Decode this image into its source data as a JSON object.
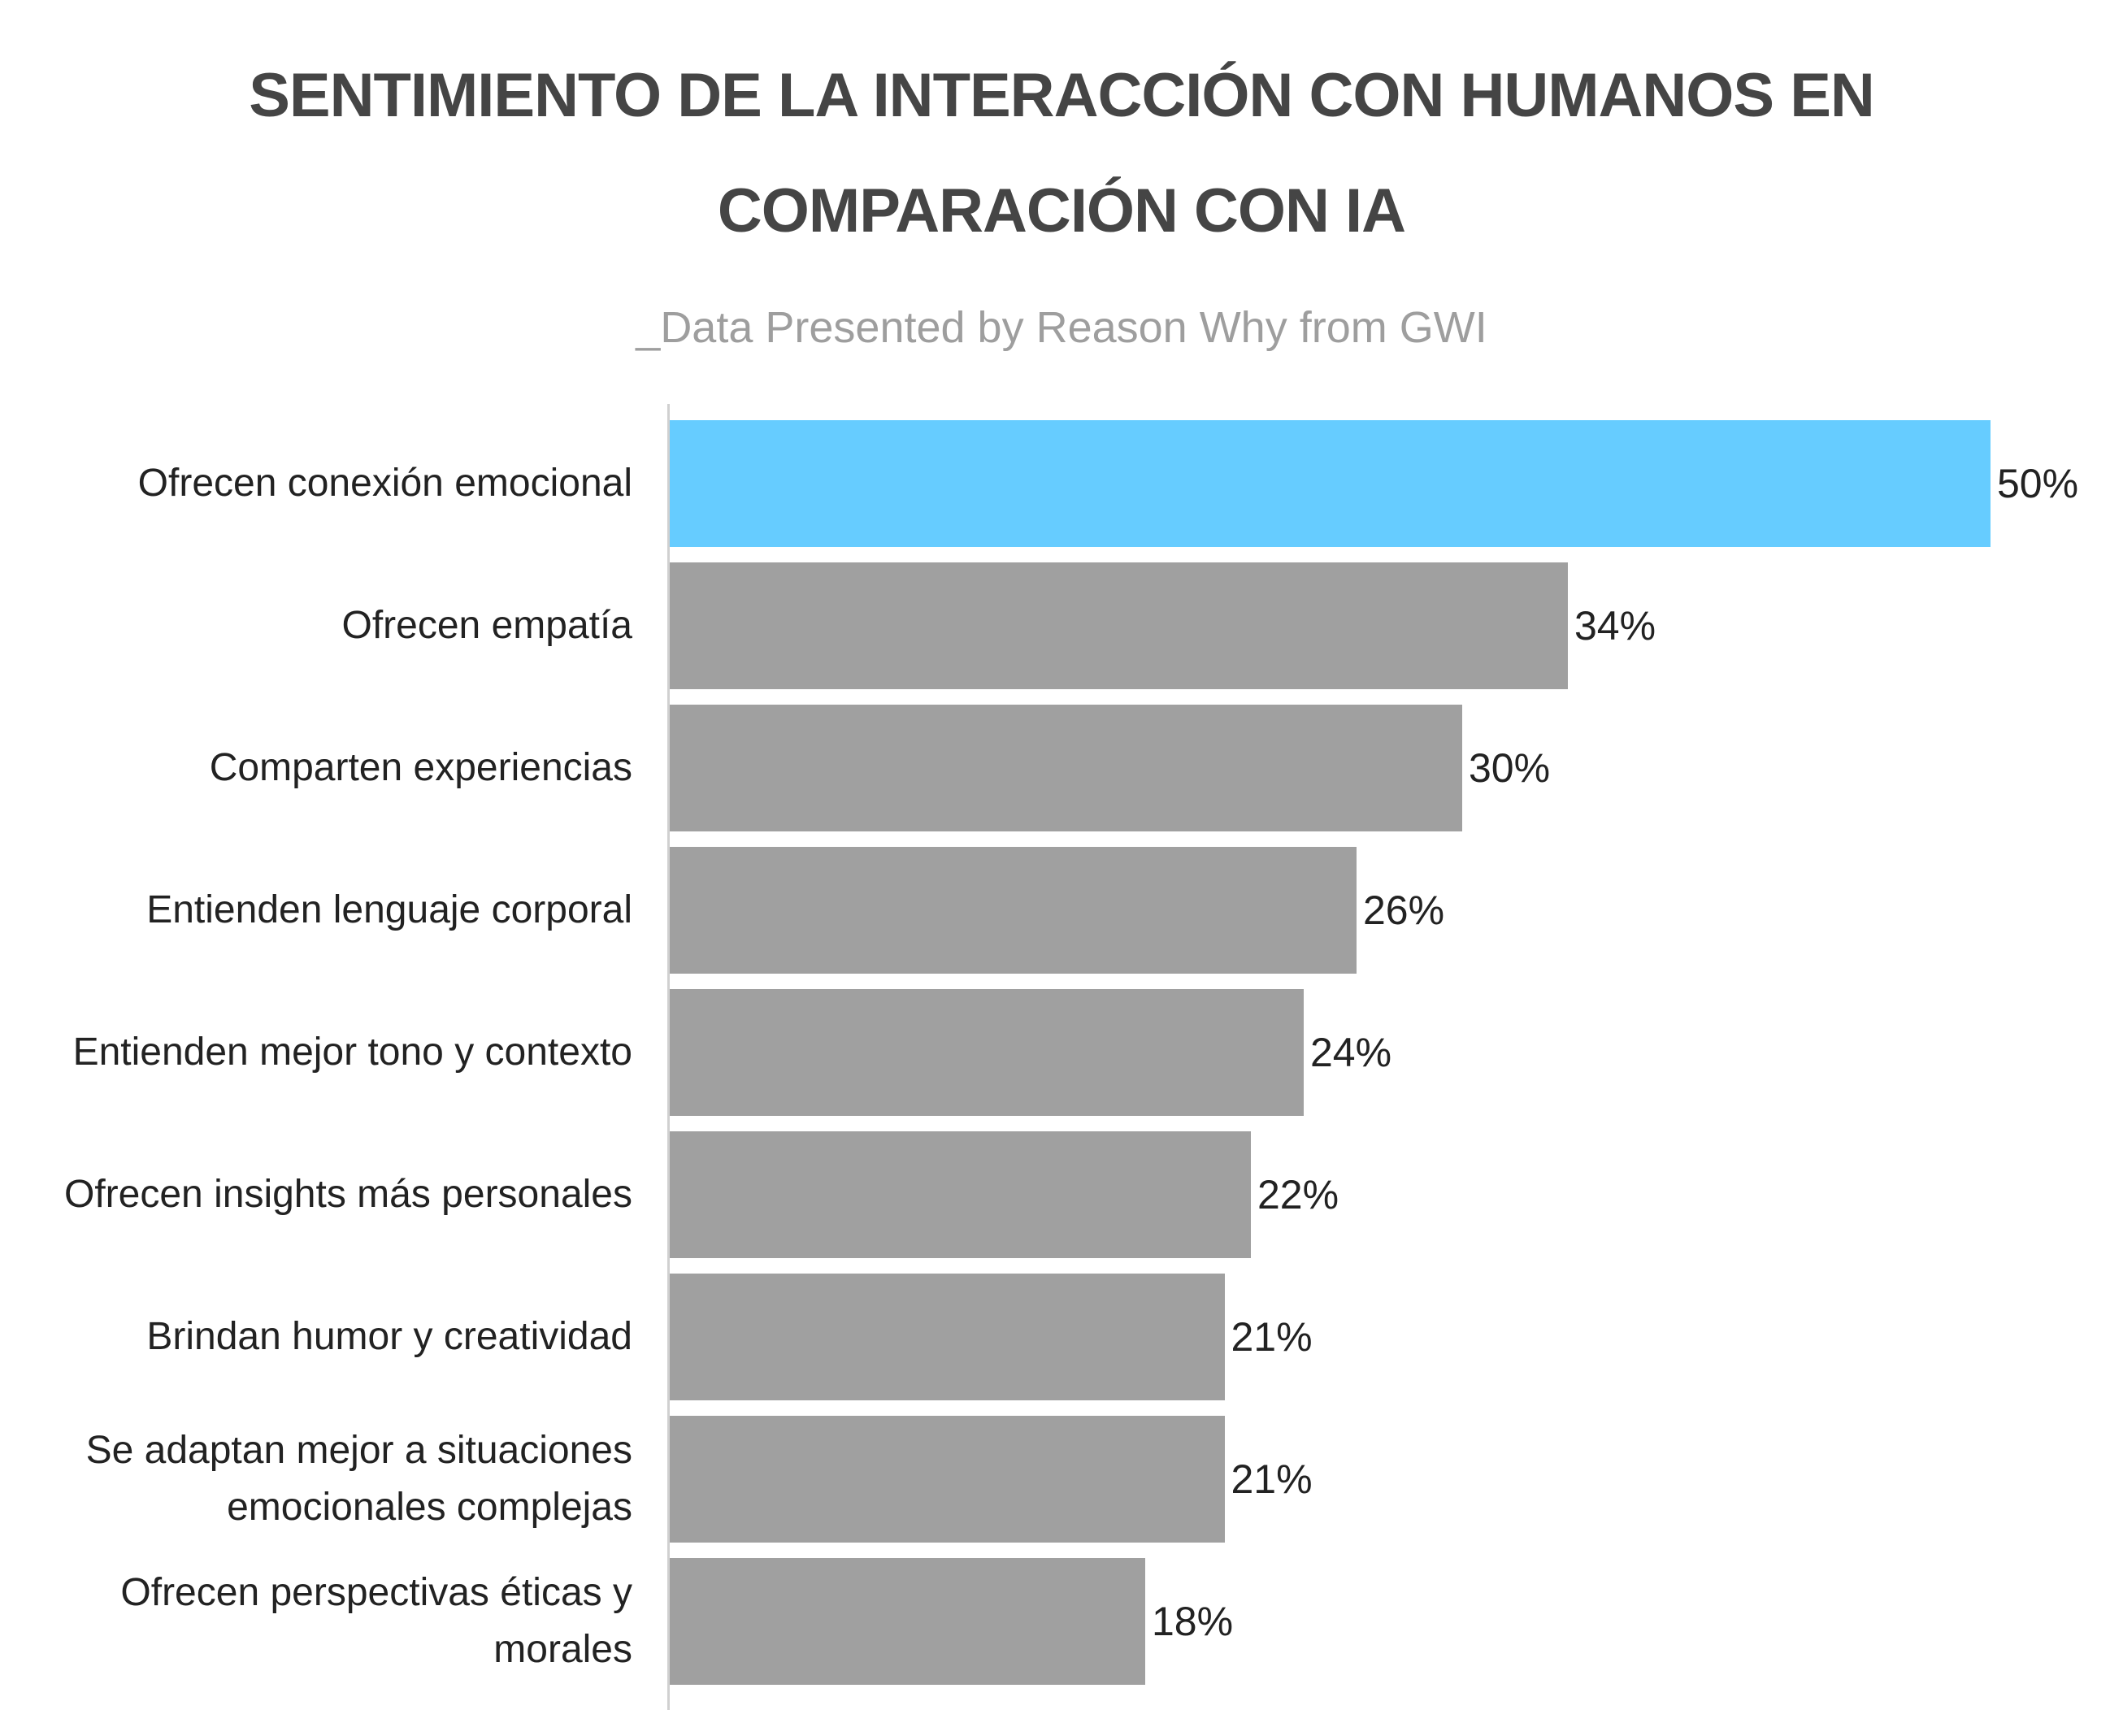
{
  "chart_data": {
    "type": "bar",
    "orientation": "horizontal",
    "title": "SENTIMIENTO DE LA INTERACCIÓN CON HUMANOS EN COMPARACIÓN CON IA",
    "title_lines": [
      "SENTIMIENTO DE LA INTERACCIÓN CON HUMANOS EN",
      "COMPARACIÓN CON IA"
    ],
    "subtitle": "_Data Presented by Reason Why from GWI",
    "categories": [
      "Ofrecen conexión emocional",
      "Ofrecen empatía",
      "Comparten experiencias",
      "Entienden lenguaje corporal",
      "Entienden mejor tono y contexto",
      "Ofrecen insights más personales",
      "Brindan humor y creatividad",
      "Se adaptan mejor a situaciones emocionales complejas",
      "Ofrecen perspectivas éticas y morales"
    ],
    "category_lines": [
      [
        "Ofrecen conexión emocional"
      ],
      [
        "Ofrecen empatía"
      ],
      [
        "Comparten experiencias"
      ],
      [
        "Entienden lenguaje corporal"
      ],
      [
        "Entienden mejor tono y contexto"
      ],
      [
        "Ofrecen insights más personales"
      ],
      [
        "Brindan humor y creatividad"
      ],
      [
        "Se adaptan mejor a situaciones",
        "emocionales complejas"
      ],
      [
        "Ofrecen perspectivas éticas y",
        "morales"
      ]
    ],
    "values": [
      50,
      34,
      30,
      26,
      24,
      22,
      21,
      21,
      18
    ],
    "value_labels": [
      "50%",
      "34%",
      "30%",
      "26%",
      "24%",
      "22%",
      "21%",
      "21%",
      "18%"
    ],
    "xlim": [
      0,
      50
    ],
    "xlabel": "",
    "ylabel": "",
    "grid": false,
    "colors": {
      "highlight": "#66ccff",
      "default": "#a0a0a0"
    }
  }
}
